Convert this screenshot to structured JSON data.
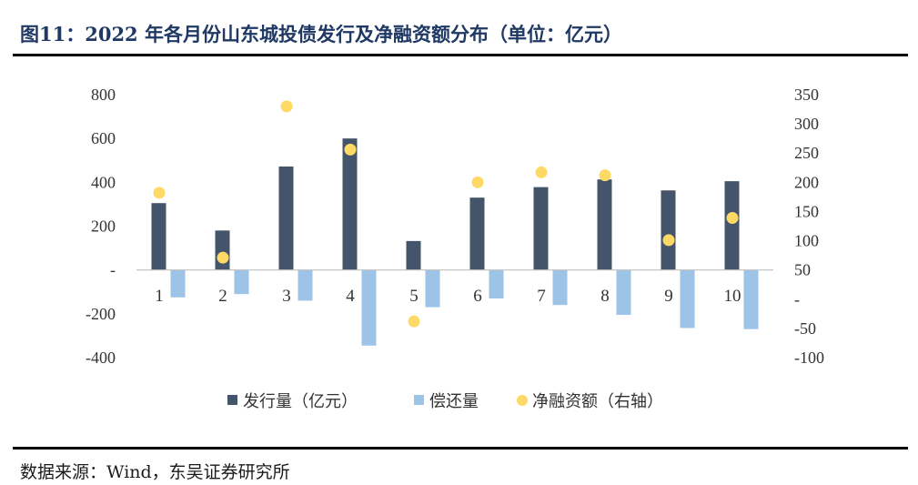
{
  "header": {
    "title": "图11：2022 年各月份山东城投债发行及净融资额分布（单位：亿元）"
  },
  "footer": {
    "source": "数据来源：Wind，东吴证券研究所"
  },
  "colors": {
    "issuance": "#44546a",
    "repayment": "#9dc3e6",
    "net": "#ffd966",
    "title": "#1f3864"
  },
  "chart_data": {
    "type": "bar",
    "categories": [
      "1",
      "2",
      "3",
      "4",
      "5",
      "6",
      "7",
      "8",
      "9",
      "10"
    ],
    "series": [
      {
        "name": "发行量（亿元）",
        "kind": "bar",
        "axis": "left",
        "values": [
          305,
          180,
          472,
          600,
          132,
          330,
          378,
          413,
          363,
          405
        ]
      },
      {
        "name": "偿还量",
        "kind": "bar",
        "axis": "left",
        "values": [
          -125,
          -110,
          -140,
          -345,
          -170,
          -130,
          -160,
          -205,
          -265,
          -270
        ]
      },
      {
        "name": "净融资额（右轴）",
        "kind": "scatter",
        "axis": "right",
        "values": [
          182,
          71,
          330,
          256,
          -38,
          200,
          217,
          212,
          101,
          139
        ]
      }
    ],
    "y_left": {
      "min": -400,
      "max": 800,
      "ticks": [
        "-400",
        "-200",
        "-",
        "200",
        "400",
        "600",
        "800"
      ],
      "tick_values": [
        -400,
        -200,
        0,
        200,
        400,
        600,
        800
      ]
    },
    "y_right": {
      "min": -100,
      "max": 350,
      "ticks": [
        "-100",
        "-50",
        "-",
        "50",
        "100",
        "150",
        "200",
        "250",
        "300",
        "350"
      ],
      "tick_values": [
        -100,
        -50,
        0,
        50,
        100,
        150,
        200,
        250,
        300,
        350
      ]
    },
    "legend_position": "bottom",
    "grid": false
  }
}
